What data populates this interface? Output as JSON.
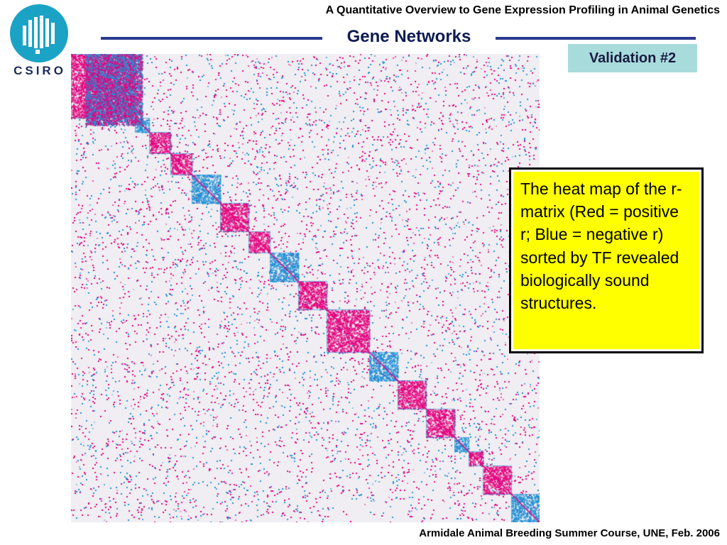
{
  "header": {
    "title": "A Quantitative Overview to Gene Expression Profiling in Animal Genetics"
  },
  "logo": {
    "text": "CSIRO",
    "color": "#1ba3c6"
  },
  "slide": {
    "section_title": "Gene Networks",
    "badge_label": "Validation #2",
    "callout_text": "The heat map of the r-matrix (Red = positive r; Blue = negative r) sorted by TF revealed biologically sound structures."
  },
  "heatmap": {
    "positive_color": "#e6007e",
    "negative_color": "#1e90d6",
    "background_color": "#f0eef2"
  },
  "footer": {
    "text": "Armidale Animal Breeding Summer Course, UNE, Feb. 2006"
  }
}
